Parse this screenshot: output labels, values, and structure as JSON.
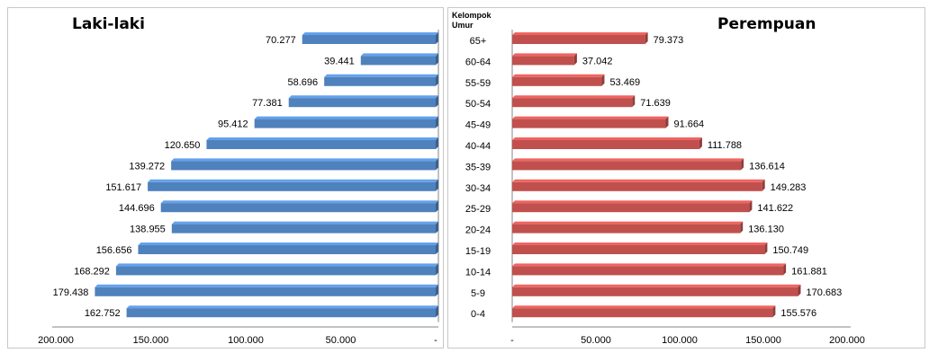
{
  "chart_data": {
    "type": "bar",
    "subtype": "population-pyramid",
    "categories_label_line1": "Kelompok",
    "categories_label_line2": "Umur",
    "categories": [
      "65+",
      "60-64",
      "55-59",
      "50-54",
      "45-49",
      "40-44",
      "35-39",
      "30-34",
      "25-29",
      "20-24",
      "15-19",
      "10-14",
      "5-9",
      "0-4"
    ],
    "series": [
      {
        "name": "Laki-laki",
        "color": "#4f81bd",
        "values": [
          70277,
          39441,
          58696,
          77381,
          95412,
          120650,
          139272,
          151617,
          144696,
          138955,
          156656,
          168292,
          179438,
          162752
        ],
        "labels": [
          "70.277",
          "39.441",
          "58.696",
          "77.381",
          "95.412",
          "120.650",
          "139.272",
          "151.617",
          "144.696",
          "138.955",
          "156.656",
          "168.292",
          "179.438",
          "162.752"
        ]
      },
      {
        "name": "Perempuan",
        "color": "#c0504d",
        "values": [
          79373,
          37042,
          53469,
          71639,
          91664,
          111788,
          136614,
          149283,
          141622,
          136130,
          150749,
          161881,
          170683,
          155576
        ],
        "labels": [
          "79.373",
          "37.042",
          "53.469",
          "71.639",
          "91.664",
          "111.788",
          "136.614",
          "149.283",
          "141.622",
          "136.130",
          "150.749",
          "161.881",
          "170.683",
          "155.576"
        ]
      }
    ],
    "xlim": [
      0,
      200000
    ],
    "left_ticks": [
      "200.000",
      "150.000",
      "100.000",
      "50.000",
      "-"
    ],
    "right_ticks": [
      "-",
      "50.000",
      "100.000",
      "150.000",
      "200.000"
    ],
    "grid": false,
    "legend": "none"
  }
}
